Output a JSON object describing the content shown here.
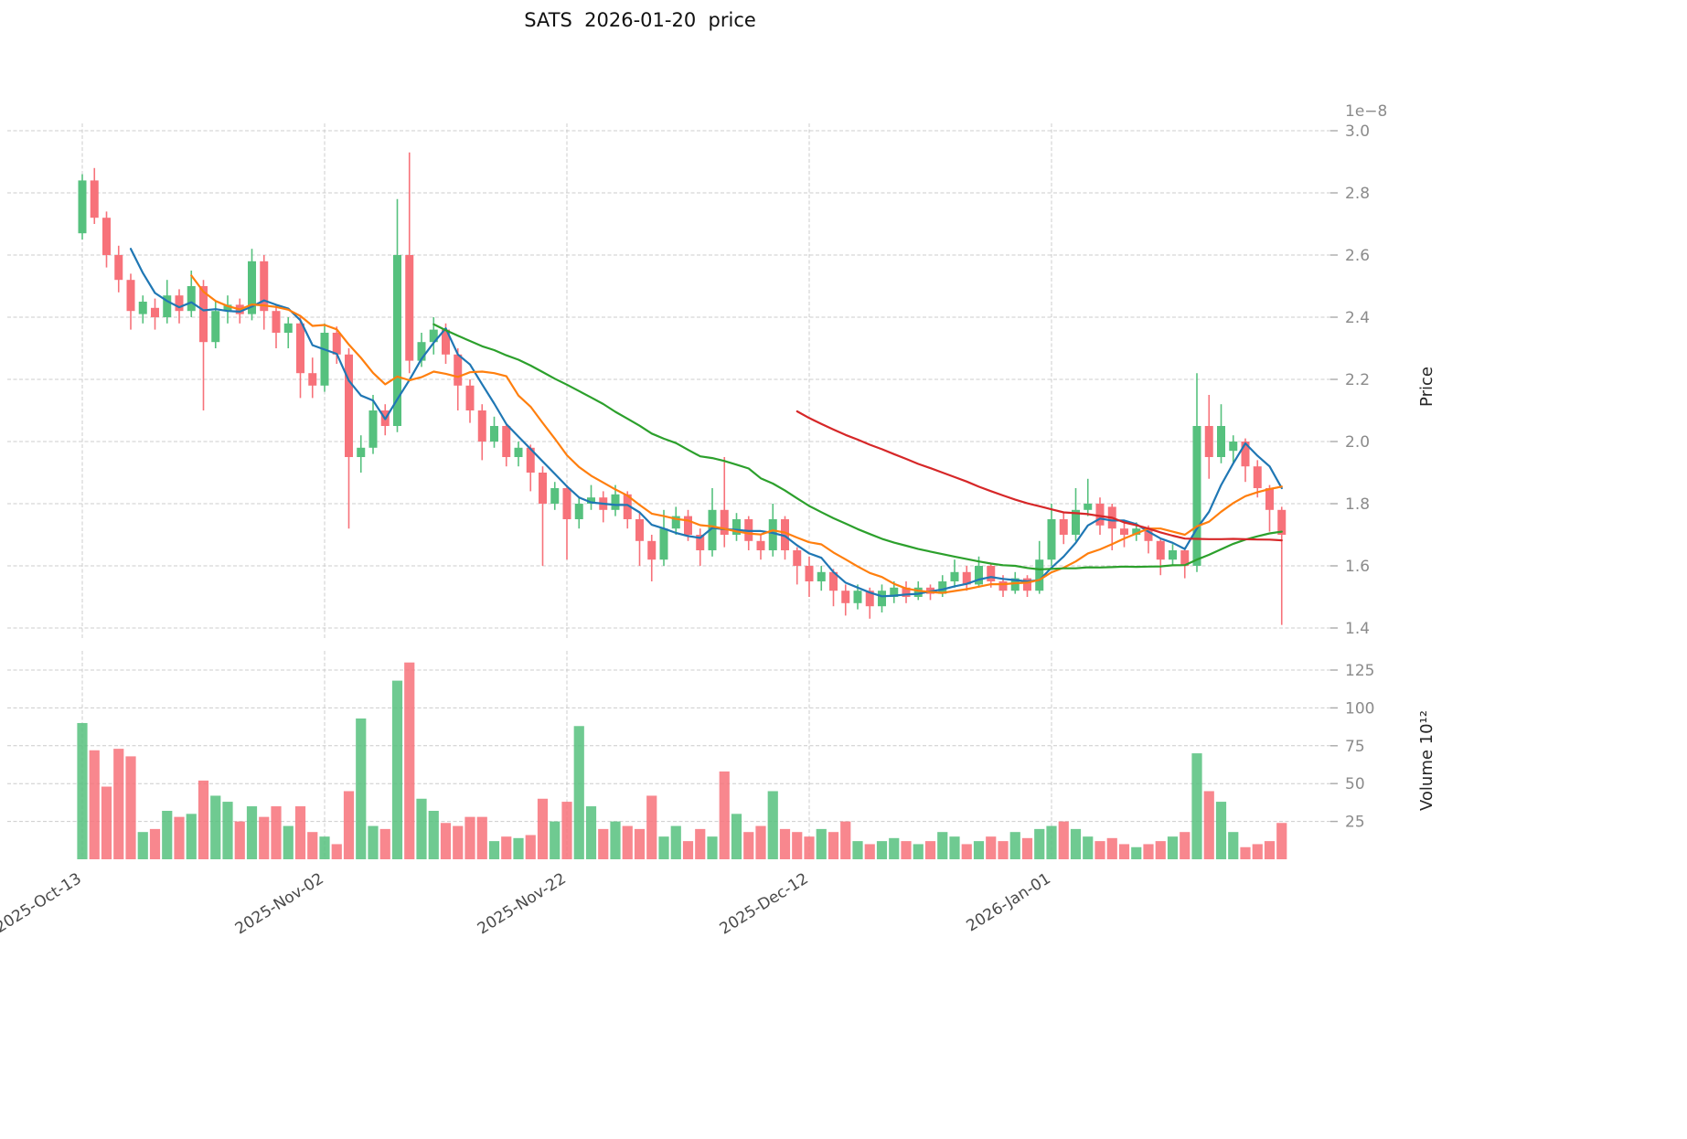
{
  "title": "SATS  2026-01-20  price",
  "axes": {
    "price_label": "Price",
    "price_offset": "1e−8",
    "volume_label": "Volume  10¹²",
    "price_ticks": [
      1.4,
      1.6,
      1.8,
      2.0,
      2.2,
      2.4,
      2.6,
      2.8,
      3.0
    ],
    "volume_ticks": [
      25,
      50,
      75,
      100,
      125
    ],
    "x_ticks": [
      {
        "index": 0,
        "label": "2025-Oct-13"
      },
      {
        "index": 20,
        "label": "2025-Nov-02"
      },
      {
        "index": 40,
        "label": "2025-Nov-22"
      },
      {
        "index": 60,
        "label": "2025-Dec-12"
      },
      {
        "index": 80,
        "label": "2026-Jan-01"
      }
    ]
  },
  "colors": {
    "up": "#56c17e",
    "down": "#f7727a",
    "grid": "#cccccc",
    "ma_blue": "#1f77b4",
    "ma_orange": "#ff7f0e",
    "ma_green": "#2ca02c",
    "ma_red": "#d62728"
  },
  "chart_data": {
    "type": "candlestick",
    "title": "SATS  2026-01-20  price",
    "ylabel": "Price",
    "y_scale_offset": "1e-8",
    "volume_label": "Volume 10^12",
    "ylim": [
      1.35,
      3.02
    ],
    "volume_ylim": [
      0,
      135
    ],
    "x": [
      "2025-10-13",
      "2025-10-14",
      "2025-10-15",
      "2025-10-16",
      "2025-10-17",
      "2025-10-18",
      "2025-10-19",
      "2025-10-20",
      "2025-10-21",
      "2025-10-22",
      "2025-10-23",
      "2025-10-24",
      "2025-10-25",
      "2025-10-26",
      "2025-10-27",
      "2025-10-28",
      "2025-10-29",
      "2025-10-30",
      "2025-10-31",
      "2025-11-01",
      "2025-11-02",
      "2025-11-03",
      "2025-11-04",
      "2025-11-05",
      "2025-11-06",
      "2025-11-07",
      "2025-11-08",
      "2025-11-09",
      "2025-11-10",
      "2025-11-11",
      "2025-11-12",
      "2025-11-13",
      "2025-11-14",
      "2025-11-15",
      "2025-11-16",
      "2025-11-17",
      "2025-11-18",
      "2025-11-19",
      "2025-11-20",
      "2025-11-21",
      "2025-11-22",
      "2025-11-23",
      "2025-11-24",
      "2025-11-25",
      "2025-11-26",
      "2025-11-27",
      "2025-11-28",
      "2025-11-29",
      "2025-11-30",
      "2025-12-01",
      "2025-12-02",
      "2025-12-03",
      "2025-12-04",
      "2025-12-05",
      "2025-12-06",
      "2025-12-07",
      "2025-12-08",
      "2025-12-09",
      "2025-12-10",
      "2025-12-11",
      "2025-12-12",
      "2025-12-13",
      "2025-12-14",
      "2025-12-15",
      "2025-12-16",
      "2025-12-17",
      "2025-12-18",
      "2025-12-19",
      "2025-12-20",
      "2025-12-21",
      "2025-12-22",
      "2025-12-23",
      "2025-12-24",
      "2025-12-25",
      "2025-12-26",
      "2025-12-27",
      "2025-12-28",
      "2025-12-29",
      "2025-12-30",
      "2025-12-31",
      "2026-01-01",
      "2026-01-02",
      "2026-01-03",
      "2026-01-04",
      "2026-01-05",
      "2026-01-06",
      "2026-01-07",
      "2026-01-08",
      "2026-01-09",
      "2026-01-10",
      "2026-01-11",
      "2026-01-12",
      "2026-01-13",
      "2026-01-14",
      "2026-01-15",
      "2026-01-16",
      "2026-01-17",
      "2026-01-18",
      "2026-01-19",
      "2026-01-20"
    ],
    "ohlc": [
      [
        2.67,
        2.86,
        2.65,
        2.84
      ],
      [
        2.84,
        2.88,
        2.7,
        2.72
      ],
      [
        2.72,
        2.74,
        2.56,
        2.6
      ],
      [
        2.6,
        2.63,
        2.48,
        2.52
      ],
      [
        2.52,
        2.54,
        2.36,
        2.42
      ],
      [
        2.41,
        2.47,
        2.38,
        2.45
      ],
      [
        2.43,
        2.46,
        2.36,
        2.4
      ],
      [
        2.4,
        2.52,
        2.38,
        2.47
      ],
      [
        2.47,
        2.49,
        2.38,
        2.42
      ],
      [
        2.42,
        2.55,
        2.4,
        2.5
      ],
      [
        2.5,
        2.52,
        2.1,
        2.32
      ],
      [
        2.32,
        2.45,
        2.3,
        2.42
      ],
      [
        2.42,
        2.47,
        2.38,
        2.44
      ],
      [
        2.44,
        2.46,
        2.38,
        2.41
      ],
      [
        2.41,
        2.62,
        2.39,
        2.58
      ],
      [
        2.58,
        2.6,
        2.36,
        2.42
      ],
      [
        2.42,
        2.44,
        2.3,
        2.35
      ],
      [
        2.35,
        2.4,
        2.3,
        2.38
      ],
      [
        2.38,
        2.4,
        2.14,
        2.22
      ],
      [
        2.22,
        2.27,
        2.14,
        2.18
      ],
      [
        2.18,
        2.38,
        2.16,
        2.35
      ],
      [
        2.35,
        2.37,
        2.25,
        2.28
      ],
      [
        2.28,
        2.3,
        1.72,
        1.95
      ],
      [
        1.95,
        2.02,
        1.9,
        1.98
      ],
      [
        1.98,
        2.15,
        1.96,
        2.1
      ],
      [
        2.1,
        2.12,
        2.02,
        2.05
      ],
      [
        2.05,
        2.78,
        2.03,
        2.6
      ],
      [
        2.6,
        2.93,
        2.22,
        2.26
      ],
      [
        2.26,
        2.35,
        2.24,
        2.32
      ],
      [
        2.32,
        2.4,
        2.28,
        2.36
      ],
      [
        2.36,
        2.38,
        2.25,
        2.28
      ],
      [
        2.28,
        2.3,
        2.1,
        2.18
      ],
      [
        2.18,
        2.2,
        2.06,
        2.1
      ],
      [
        2.1,
        2.12,
        1.94,
        2.0
      ],
      [
        2.0,
        2.08,
        1.98,
        2.05
      ],
      [
        2.05,
        2.06,
        1.92,
        1.95
      ],
      [
        1.95,
        2.0,
        1.92,
        1.98
      ],
      [
        1.98,
        1.99,
        1.84,
        1.9
      ],
      [
        1.9,
        1.92,
        1.6,
        1.8
      ],
      [
        1.8,
        1.87,
        1.78,
        1.85
      ],
      [
        1.85,
        1.86,
        1.62,
        1.75
      ],
      [
        1.75,
        1.82,
        1.72,
        1.8
      ],
      [
        1.8,
        1.86,
        1.78,
        1.82
      ],
      [
        1.82,
        1.84,
        1.74,
        1.78
      ],
      [
        1.78,
        1.86,
        1.76,
        1.83
      ],
      [
        1.83,
        1.84,
        1.72,
        1.75
      ],
      [
        1.75,
        1.77,
        1.6,
        1.68
      ],
      [
        1.68,
        1.7,
        1.55,
        1.62
      ],
      [
        1.62,
        1.78,
        1.6,
        1.72
      ],
      [
        1.72,
        1.79,
        1.7,
        1.76
      ],
      [
        1.76,
        1.78,
        1.68,
        1.7
      ],
      [
        1.7,
        1.72,
        1.6,
        1.65
      ],
      [
        1.65,
        1.85,
        1.63,
        1.78
      ],
      [
        1.78,
        1.95,
        1.66,
        1.7
      ],
      [
        1.7,
        1.77,
        1.68,
        1.75
      ],
      [
        1.75,
        1.76,
        1.65,
        1.68
      ],
      [
        1.68,
        1.7,
        1.62,
        1.65
      ],
      [
        1.65,
        1.8,
        1.63,
        1.75
      ],
      [
        1.75,
        1.76,
        1.62,
        1.65
      ],
      [
        1.65,
        1.66,
        1.54,
        1.6
      ],
      [
        1.6,
        1.63,
        1.5,
        1.55
      ],
      [
        1.55,
        1.6,
        1.52,
        1.58
      ],
      [
        1.58,
        1.59,
        1.47,
        1.52
      ],
      [
        1.52,
        1.54,
        1.44,
        1.48
      ],
      [
        1.48,
        1.54,
        1.46,
        1.52
      ],
      [
        1.52,
        1.53,
        1.43,
        1.47
      ],
      [
        1.47,
        1.54,
        1.45,
        1.52
      ],
      [
        1.5,
        1.55,
        1.48,
        1.53
      ],
      [
        1.53,
        1.55,
        1.48,
        1.5
      ],
      [
        1.5,
        1.55,
        1.49,
        1.53
      ],
      [
        1.53,
        1.54,
        1.49,
        1.51
      ],
      [
        1.51,
        1.57,
        1.5,
        1.55
      ],
      [
        1.55,
        1.62,
        1.53,
        1.58
      ],
      [
        1.58,
        1.6,
        1.52,
        1.54
      ],
      [
        1.54,
        1.63,
        1.53,
        1.6
      ],
      [
        1.6,
        1.61,
        1.53,
        1.55
      ],
      [
        1.55,
        1.57,
        1.5,
        1.52
      ],
      [
        1.52,
        1.58,
        1.51,
        1.56
      ],
      [
        1.56,
        1.57,
        1.5,
        1.52
      ],
      [
        1.52,
        1.68,
        1.51,
        1.62
      ],
      [
        1.62,
        1.8,
        1.6,
        1.75
      ],
      [
        1.75,
        1.77,
        1.67,
        1.7
      ],
      [
        1.7,
        1.85,
        1.68,
        1.78
      ],
      [
        1.78,
        1.88,
        1.76,
        1.8
      ],
      [
        1.8,
        1.82,
        1.7,
        1.73
      ],
      [
        1.79,
        1.8,
        1.65,
        1.72
      ],
      [
        1.72,
        1.74,
        1.66,
        1.7
      ],
      [
        1.7,
        1.74,
        1.68,
        1.72
      ],
      [
        1.72,
        1.73,
        1.64,
        1.68
      ],
      [
        1.68,
        1.69,
        1.57,
        1.62
      ],
      [
        1.62,
        1.67,
        1.6,
        1.65
      ],
      [
        1.65,
        1.66,
        1.56,
        1.6
      ],
      [
        1.6,
        2.22,
        1.58,
        2.05
      ],
      [
        2.05,
        2.15,
        1.88,
        1.95
      ],
      [
        1.95,
        2.12,
        1.93,
        2.05
      ],
      [
        1.97,
        2.02,
        1.93,
        2.0
      ],
      [
        2.0,
        2.01,
        1.87,
        1.92
      ],
      [
        1.92,
        1.94,
        1.82,
        1.85
      ],
      [
        1.85,
        1.86,
        1.71,
        1.78
      ],
      [
        1.78,
        1.79,
        1.41,
        1.7
      ]
    ],
    "volume": [
      90,
      72,
      48,
      73,
      68,
      18,
      20,
      32,
      28,
      30,
      52,
      42,
      38,
      25,
      35,
      28,
      35,
      22,
      35,
      18,
      15,
      10,
      45,
      93,
      22,
      20,
      118,
      130,
      40,
      32,
      24,
      22,
      28,
      28,
      12,
      15,
      14,
      16,
      40,
      25,
      38,
      88,
      35,
      20,
      25,
      22,
      20,
      42,
      15,
      22,
      12,
      20,
      15,
      58,
      30,
      18,
      22,
      45,
      20,
      18,
      15,
      20,
      18,
      25,
      12,
      10,
      12,
      14,
      12,
      10,
      12,
      18,
      15,
      10,
      12,
      15,
      12,
      18,
      14,
      20,
      22,
      25,
      20,
      15,
      12,
      14,
      10,
      8,
      10,
      12,
      15,
      18,
      70,
      45,
      38,
      18,
      8,
      10,
      12,
      24
    ],
    "moving_averages": [
      {
        "name": "MA5",
        "window": 5,
        "color": "#1f77b4"
      },
      {
        "name": "MA10",
        "window": 10,
        "color": "#ff7f0e"
      },
      {
        "name": "MA30",
        "window": 30,
        "color": "#2ca02c"
      },
      {
        "name": "MA60",
        "window": 60,
        "color": "#d62728"
      }
    ],
    "grid": true,
    "legend_position": "none"
  }
}
